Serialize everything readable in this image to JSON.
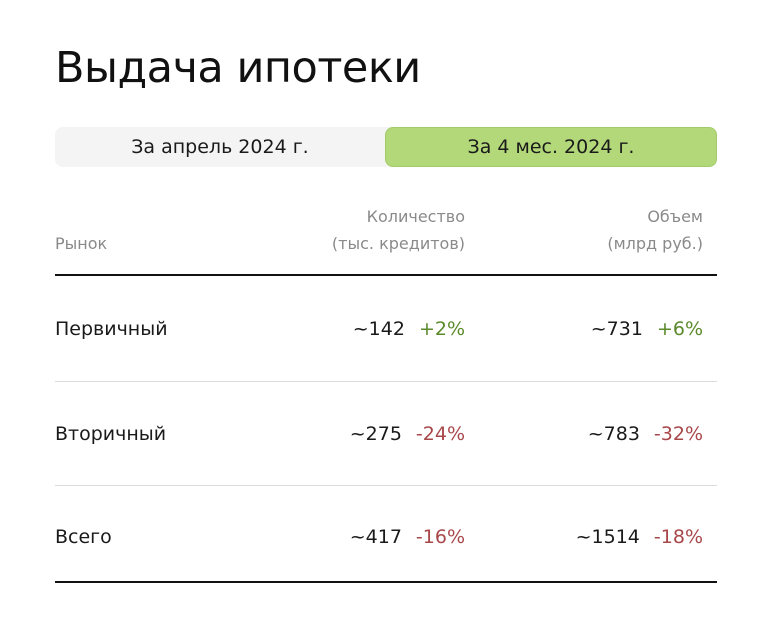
{
  "title": "Выдача ипотеки",
  "tabs": [
    {
      "label": "За апрель 2024 г.",
      "active": false
    },
    {
      "label": "За 4 мес. 2024 г.",
      "active": true
    }
  ],
  "columns": {
    "market": "Рынок",
    "count": {
      "line1": "Количество",
      "line2": "(тыс. кредитов)"
    },
    "volume": {
      "line1": "Объем",
      "line2": "(млрд руб.)"
    }
  },
  "rows": [
    {
      "label": "Первичный",
      "count": "~142",
      "count_change": "+2%",
      "volume": "~731",
      "volume_change": "+6%"
    },
    {
      "label": "Вторичный",
      "count": "~275",
      "count_change": "-24%",
      "volume": "~783",
      "volume_change": "-32%"
    },
    {
      "label": "Всего",
      "count": "~417",
      "count_change": "-16%",
      "volume": "~1514",
      "volume_change": "-18%"
    }
  ],
  "colors": {
    "active_tab": "#b2d87a",
    "positive": "#5b8a2c",
    "negative": "#a8474a"
  }
}
